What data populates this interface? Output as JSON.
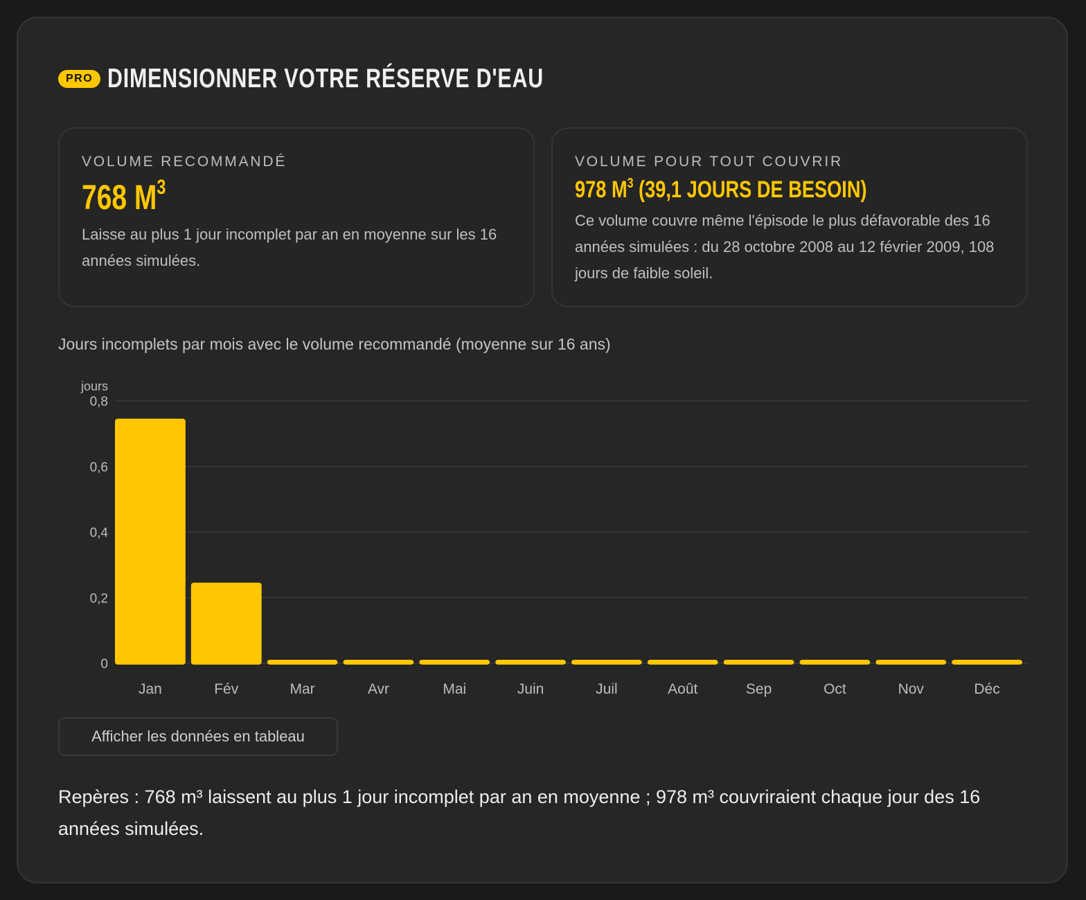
{
  "header": {
    "badge": "PRO",
    "title": "DIMENSIONNER VOTRE RÉSERVE D'EAU"
  },
  "recommended": {
    "label": "VOLUME RECOMMANDÉ",
    "value": "768 M",
    "value_sup": "3",
    "description": "Laisse au plus 1 jour incomplet par an en moyenne sur les 16 années simulées."
  },
  "full_cover": {
    "label": "VOLUME POUR TOUT COUVRIR",
    "value_main": "978 M",
    "value_sup": "3",
    "value_rest": " (39,1 JOURS DE BESOIN)",
    "description": "Ce volume couvre même l'épisode le plus défavorable des 16 années simulées : du 28 octobre 2008 au 12 février 2009, 108 jours de faible soleil."
  },
  "chart_caption": "Jours incomplets par mois avec le volume recommandé (moyenne sur 16 ans)",
  "table_button": "Afficher les données en tableau",
  "footer_note": "Repères : 768 m³ laissent au plus 1 jour incomplet par an en moyenne ; 978 m³ couvriraient chaque jour des 16 années simulées.",
  "colors": {
    "accent": "#ffc700",
    "background": "#1a1a1a",
    "card": "#262626"
  },
  "chart_data": {
    "type": "bar",
    "ylabel": "jours",
    "categories": [
      "Jan",
      "Fév",
      "Mar",
      "Avr",
      "Mai",
      "Juin",
      "Juil",
      "Août",
      "Sep",
      "Oct",
      "Nov",
      "Déc"
    ],
    "values": [
      0.75,
      0.25,
      0,
      0,
      0,
      0,
      0,
      0,
      0,
      0,
      0,
      0
    ],
    "ylim": [
      0,
      0.8
    ],
    "yticks": [
      0,
      0.2,
      0.4,
      0.6,
      0.8
    ],
    "ytick_labels": [
      "0",
      "0,2",
      "0,4",
      "0,6",
      "0,8"
    ],
    "grid": true,
    "bar_color": "#ffc700"
  }
}
